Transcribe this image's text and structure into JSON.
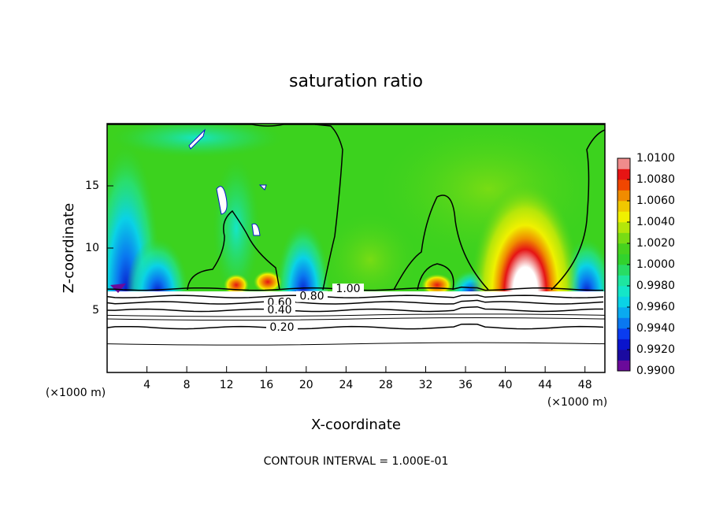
{
  "chart_data": {
    "type": "contour",
    "title": "saturation ratio",
    "x_label": "X-coordinate",
    "y_label": "Z-coordinate",
    "x_unit_label": "(×1000 m)",
    "footer": "CONTOUR INTERVAL = 1.000E-01",
    "xlim": [
      0,
      50
    ],
    "ylim": [
      0,
      20
    ],
    "xticks": [
      4,
      8,
      12,
      16,
      20,
      24,
      28,
      32,
      36,
      40,
      44,
      48
    ],
    "yticks": [
      5,
      10,
      15
    ],
    "contours": [
      {
        "value": 1.0,
        "label": "1.00"
      },
      {
        "value": 0.8,
        "label": "0.80"
      },
      {
        "value": 0.6,
        "label": "0.60"
      },
      {
        "value": 0.4,
        "label": "0.40"
      },
      {
        "value": 0.2,
        "label": "0.20"
      }
    ],
    "colorbar": {
      "lim": [
        0.99,
        1.01
      ],
      "ticks": [
        {
          "value": 0.99,
          "label": "0.9900"
        },
        {
          "value": 0.992,
          "label": "0.9920"
        },
        {
          "value": 0.994,
          "label": "0.9940"
        },
        {
          "value": 0.996,
          "label": "0.9960"
        },
        {
          "value": 0.998,
          "label": "0.9980"
        },
        {
          "value": 1.0,
          "label": "1.0000"
        },
        {
          "value": 1.002,
          "label": "1.0020"
        },
        {
          "value": 1.004,
          "label": "1.0040"
        },
        {
          "value": 1.006,
          "label": "1.0060"
        },
        {
          "value": 1.008,
          "label": "1.0080"
        },
        {
          "value": 1.01,
          "label": "1.0100"
        }
      ],
      "colors": [
        "#6a0a9a",
        "#1a0aa0",
        "#0a14cc",
        "#0a3cf0",
        "#0a78f0",
        "#0aaaf0",
        "#0ad2e6",
        "#14e6c8",
        "#1ee6a0",
        "#28dc64",
        "#32d22d",
        "#46d21e",
        "#78dc14",
        "#b4e60a",
        "#f0f000",
        "#f0c800",
        "#f08c00",
        "#f04600",
        "#e61414",
        "#f08c8c"
      ]
    }
  }
}
